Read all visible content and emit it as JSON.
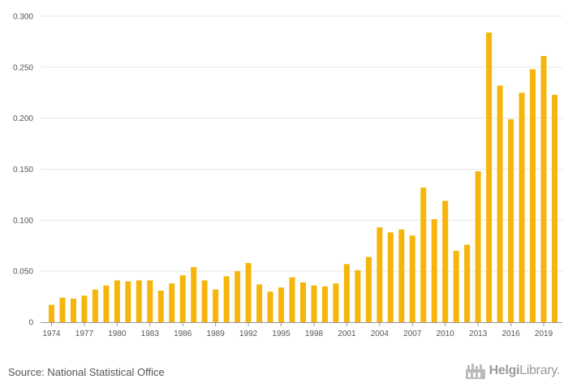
{
  "chart_data": {
    "type": "bar",
    "color": "#F5B50A",
    "categories": [
      "1974",
      "1975",
      "1976",
      "1977",
      "1978",
      "1979",
      "1980",
      "1981",
      "1982",
      "1983",
      "1984",
      "1985",
      "1986",
      "1987",
      "1988",
      "1989",
      "1990",
      "1991",
      "1992",
      "1993",
      "1994",
      "1995",
      "1996",
      "1997",
      "1998",
      "1999",
      "2000",
      "2001",
      "2002",
      "2003",
      "2004",
      "2005",
      "2006",
      "2007",
      "2008",
      "2009",
      "2010",
      "2011",
      "2012",
      "2013",
      "2014",
      "2015",
      "2016",
      "2017",
      "2018",
      "2019",
      "2020"
    ],
    "values": [
      0.017,
      0.024,
      0.023,
      0.026,
      0.032,
      0.036,
      0.041,
      0.04,
      0.041,
      0.041,
      0.031,
      0.038,
      0.046,
      0.054,
      0.041,
      0.032,
      0.045,
      0.05,
      0.058,
      0.037,
      0.03,
      0.034,
      0.044,
      0.039,
      0.036,
      0.035,
      0.038,
      0.057,
      0.051,
      0.064,
      0.093,
      0.088,
      0.091,
      0.085,
      0.132,
      0.101,
      0.119,
      0.07,
      0.076,
      0.148,
      0.284,
      0.232,
      0.199,
      0.225,
      0.248,
      0.261,
      0.223
    ],
    "x_tick_labels": [
      "1974",
      "1977",
      "1980",
      "1983",
      "1986",
      "1989",
      "1992",
      "1995",
      "1998",
      "2001",
      "2004",
      "2007",
      "2010",
      "2013",
      "2016",
      "2019"
    ],
    "y_tick_labels": [
      "0",
      "0.050",
      "0.100",
      "0.150",
      "0.200",
      "0.250",
      "0.300"
    ],
    "ylim": [
      0,
      0.3
    ],
    "grid": true
  },
  "footer": {
    "source": "Source: National Statistical Office",
    "brand_bold": "Helgi",
    "brand_rest": "Library."
  }
}
